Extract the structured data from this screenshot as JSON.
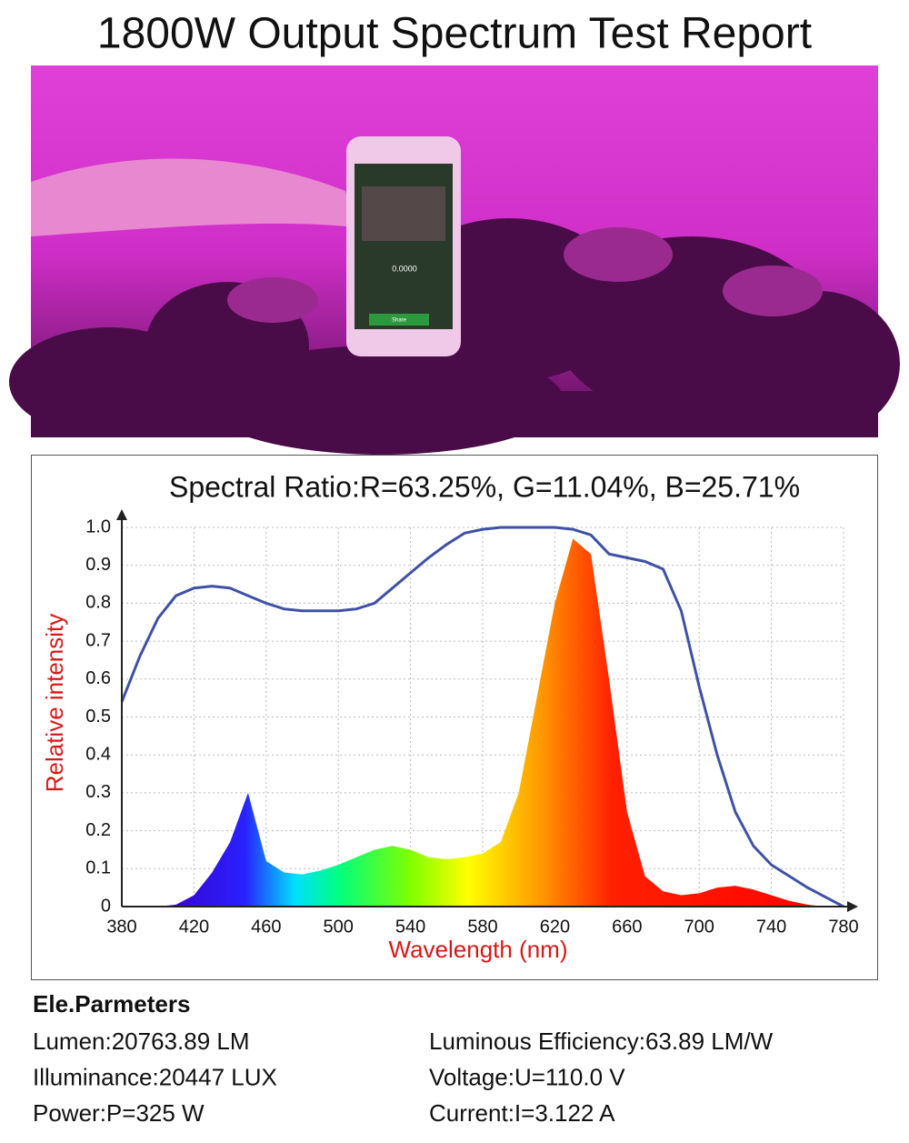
{
  "title": "1800W Output Spectrum Test Report",
  "photo": {
    "phone_reading": "0.0000",
    "phone_button": "Share"
  },
  "chart_data": {
    "type": "spectrum",
    "title": "Spectral Ratio:R=63.25%, G=11.04%, B=25.71%",
    "y_label": "Relative intensity",
    "x_label": "Wavelength (nm)",
    "x": [
      380,
      390,
      400,
      410,
      420,
      430,
      440,
      450,
      460,
      470,
      480,
      490,
      500,
      510,
      520,
      530,
      540,
      550,
      560,
      570,
      580,
      590,
      600,
      610,
      620,
      630,
      640,
      650,
      660,
      670,
      680,
      690,
      700,
      710,
      720,
      730,
      740,
      750,
      760,
      770,
      780
    ],
    "series": [
      {
        "color": "spectral",
        "values": [
          0,
          0,
          0,
          0.005,
          0.03,
          0.09,
          0.17,
          0.3,
          0.12,
          0.09,
          0.085,
          0.095,
          0.11,
          0.13,
          0.15,
          0.16,
          0.15,
          0.13,
          0.125,
          0.13,
          0.14,
          0.17,
          0.3,
          0.55,
          0.8,
          0.97,
          0.93,
          0.6,
          0.25,
          0.08,
          0.04,
          0.03,
          0.035,
          0.05,
          0.055,
          0.045,
          0.03,
          0.015,
          0.005,
          0,
          0
        ]
      },
      {
        "color": "#3f51a5",
        "values": [
          0.54,
          0.66,
          0.76,
          0.82,
          0.84,
          0.845,
          0.84,
          0.82,
          0.8,
          0.785,
          0.78,
          0.78,
          0.78,
          0.785,
          0.8,
          0.84,
          0.88,
          0.92,
          0.955,
          0.985,
          0.995,
          1,
          1,
          1,
          1,
          0.995,
          0.98,
          0.93,
          0.92,
          0.91,
          0.89,
          0.78,
          0.58,
          0.4,
          0.25,
          0.16,
          0.11,
          0.08,
          0.05,
          0.025,
          0
        ]
      }
    ],
    "xlim": [
      380,
      780
    ],
    "xticks": [
      380,
      420,
      460,
      500,
      540,
      580,
      620,
      660,
      700,
      740,
      780
    ],
    "ylim": [
      0,
      1
    ],
    "yticks": [
      0,
      0.1,
      0.2,
      0.3,
      0.4,
      0.5,
      0.6,
      0.7,
      0.8,
      0.9,
      {
        "value": 1,
        "label": "1.0"
      }
    ],
    "grid": true
  },
  "parameters": {
    "heading": "Ele.Parmeters",
    "left": [
      "Lumen:20763.89 LM",
      "Illuminance:20447 LUX",
      "Power:P=325 W"
    ],
    "right": [
      "Luminous Efficiency:63.89 LM/W",
      "Voltage:U=110.0 V",
      "Current:I=3.122 A"
    ]
  }
}
